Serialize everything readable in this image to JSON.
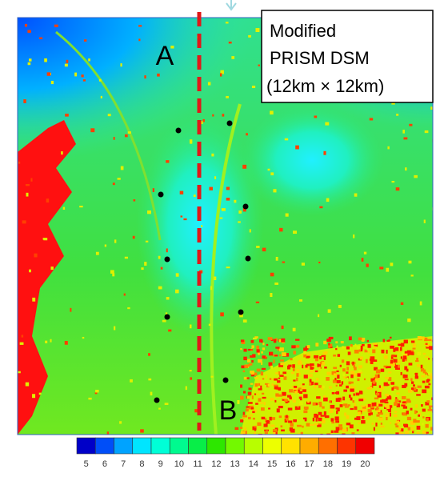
{
  "map": {
    "labels": {
      "a": "A",
      "b": "B"
    },
    "legend_box": [
      "Modified",
      "PRISM DSM",
      "(12km × 12km)"
    ],
    "colorbar": {
      "ticks": [
        5,
        6,
        7,
        8,
        9,
        10,
        11,
        12,
        13,
        14,
        15,
        16,
        17,
        18,
        19,
        20
      ]
    }
  }
}
